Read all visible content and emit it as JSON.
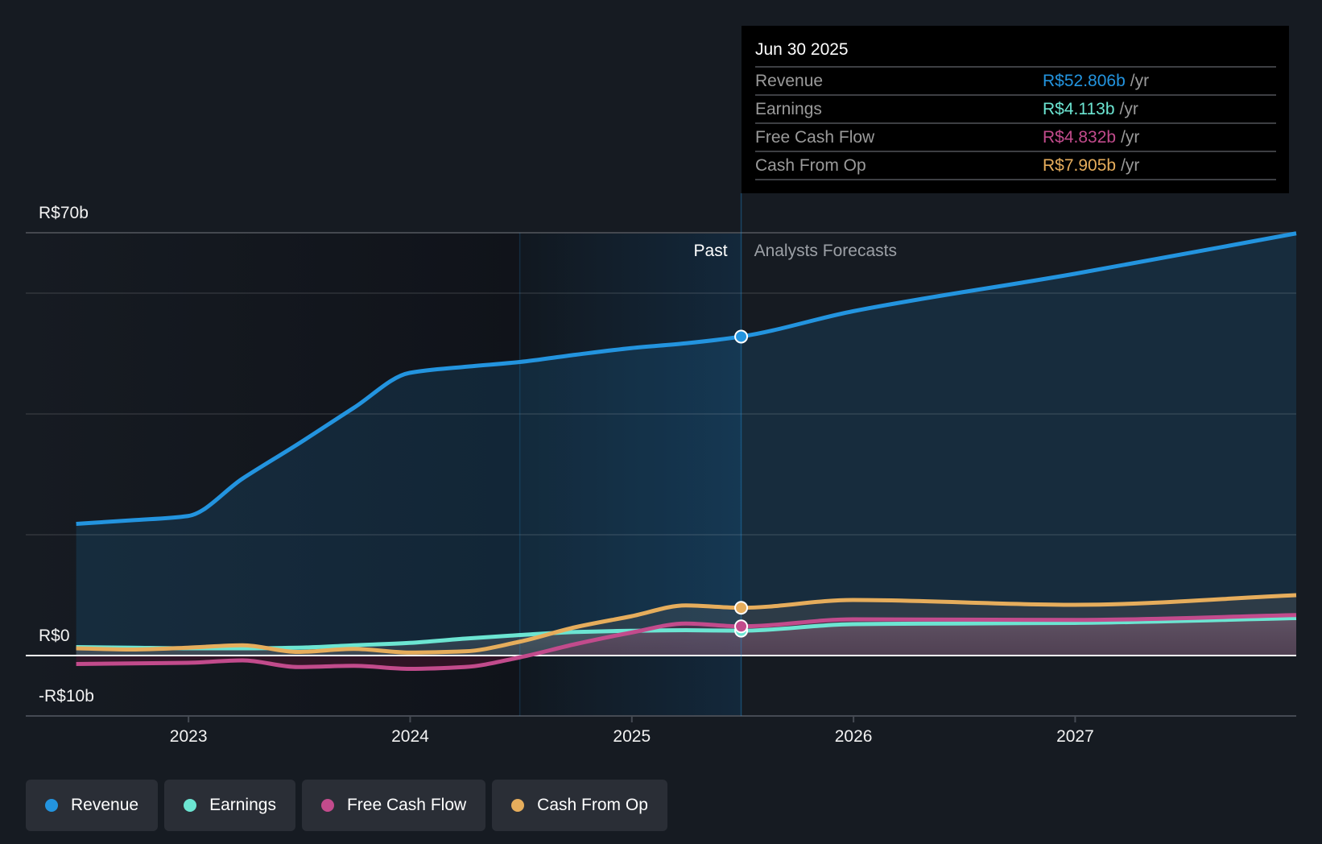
{
  "tooltip": {
    "date": "Jun 30 2025",
    "rows": [
      {
        "label": "Revenue",
        "value": "R$52.806b",
        "unit": "/yr",
        "color": "#2394df"
      },
      {
        "label": "Earnings",
        "value": "R$4.113b",
        "unit": "/yr",
        "color": "#6ce5d2"
      },
      {
        "label": "Free Cash Flow",
        "value": "R$4.832b",
        "unit": "/yr",
        "color": "#c24b8c"
      },
      {
        "label": "Cash From Op",
        "value": "R$7.905b",
        "unit": "/yr",
        "color": "#e6ad5c"
      }
    ]
  },
  "period_labels": {
    "past": "Past",
    "forecast": "Analysts Forecasts"
  },
  "legend": [
    {
      "label": "Revenue",
      "color": "#2394df"
    },
    {
      "label": "Earnings",
      "color": "#6ce5d2"
    },
    {
      "label": "Free Cash Flow",
      "color": "#c24b8c"
    },
    {
      "label": "Cash From Op",
      "color": "#e6ad5c"
    }
  ],
  "chart_data": {
    "type": "line",
    "title": "",
    "xlabel": "",
    "ylabel": "",
    "unit": "R$ billions per year",
    "x": [
      "2022-06-30",
      "2022-09-30",
      "2022-12-31",
      "2023-03-31",
      "2023-06-30",
      "2023-09-30",
      "2023-12-31",
      "2024-03-31",
      "2024-06-30",
      "2024-09-30",
      "2024-12-31",
      "2025-03-31",
      "2025-06-30",
      "2025-12-31",
      "2026-12-31",
      "2027-12-31"
    ],
    "series": [
      {
        "name": "Revenue",
        "color": "#2394df",
        "values": [
          21.8,
          22.4,
          23.1,
          29.3,
          35.0,
          41.0,
          46.8,
          47.8,
          48.6,
          49.8,
          50.9,
          51.7,
          52.806,
          57.0,
          63.2,
          69.9
        ]
      },
      {
        "name": "Earnings",
        "color": "#6ce5d2",
        "values": [
          1.4,
          1.3,
          1.2,
          1.2,
          1.3,
          1.7,
          2.1,
          2.8,
          3.4,
          3.9,
          4.1,
          4.2,
          4.113,
          5.2,
          5.4,
          6.2
        ]
      },
      {
        "name": "Free Cash Flow",
        "color": "#c24b8c",
        "values": [
          -1.4,
          -1.3,
          -1.2,
          -0.8,
          -1.9,
          -1.7,
          -2.2,
          -1.9,
          -0.3,
          1.9,
          3.8,
          5.3,
          4.832,
          6.0,
          5.9,
          6.7
        ]
      },
      {
        "name": "Cash From Op",
        "color": "#e6ad5c",
        "values": [
          1.2,
          1.0,
          1.3,
          1.7,
          0.6,
          1.1,
          0.5,
          0.7,
          2.3,
          4.7,
          6.5,
          8.3,
          7.905,
          9.2,
          8.4,
          10.0
        ]
      }
    ],
    "xlim": [
      "2022-04-08",
      "2027-12-31"
    ],
    "ylim": [
      -10,
      70
    ],
    "y_gridlines": [
      70,
      60,
      40,
      20,
      0,
      -10
    ],
    "y_tick_labels": [
      {
        "value": 70,
        "label": "R$70b"
      },
      {
        "value": 0,
        "label": "R$0"
      },
      {
        "value": -10,
        "label": "-R$10b"
      }
    ],
    "x_ticks": [
      {
        "value": "2023-01-01",
        "label": "2023"
      },
      {
        "value": "2024-01-01",
        "label": "2024"
      },
      {
        "value": "2025-01-01",
        "label": "2025"
      },
      {
        "value": "2026-01-01",
        "label": "2026"
      },
      {
        "value": "2027-01-01",
        "label": "2027"
      }
    ],
    "highlight_range": [
      "2024-06-30",
      "2025-06-30"
    ],
    "forecast_start": "2025-06-30",
    "selected_point": "2025-06-30",
    "grid": true,
    "legend_position": "bottom-left"
  }
}
